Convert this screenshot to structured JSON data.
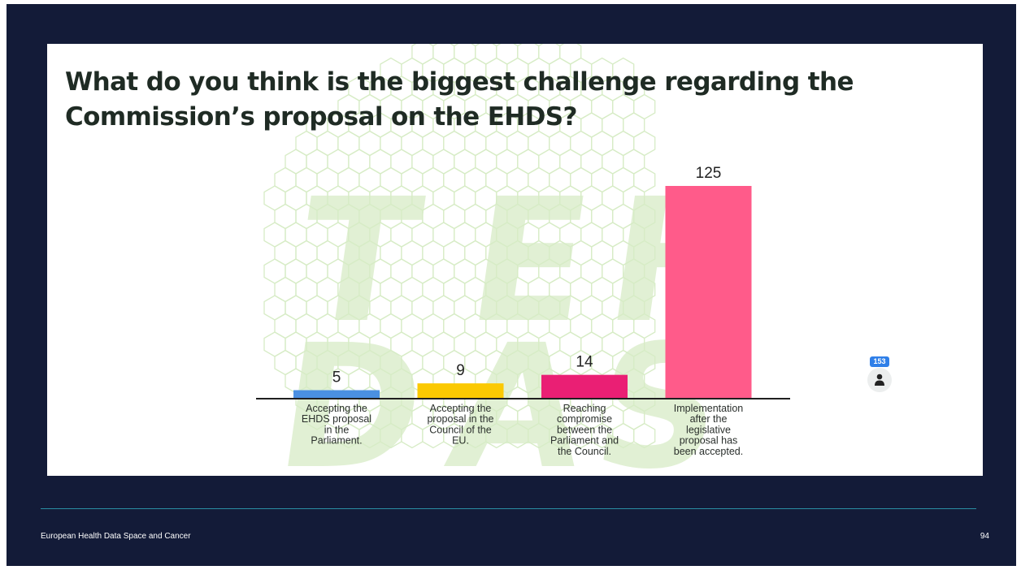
{
  "slide": {
    "question": "What do you think is the biggest challenge regarding the Commission’s proposal on the EHDS?",
    "footer_title": "European Health Data Space and Cancer",
    "page_number": "94",
    "participants_count": "153",
    "participants_icon": "person-icon"
  },
  "colors": {
    "slide_background": "#131b38",
    "panel_background": "#ffffff",
    "watermark": "#d7ecc6",
    "axis": "#1f1f1f",
    "text": "#1f2b24",
    "divider": "#2a8fa3",
    "badge": "#2f7fe8"
  },
  "chart_data": {
    "type": "bar",
    "title": "",
    "xlabel": "",
    "ylabel": "",
    "ylim": [
      0,
      125
    ],
    "grid": false,
    "categories": [
      "Accepting the EHDS proposal in the Parliament.",
      "Accepting the proposal in the Council of the EU.",
      "Reaching compromise between the Parliament and the Council.",
      "Implementation after the legislative proposal has been accepted."
    ],
    "category_lines": [
      [
        "Accepting the",
        "EHDS proposal",
        "in the",
        "Parliament."
      ],
      [
        "Accepting the",
        "proposal in the",
        "Council of the",
        "EU."
      ],
      [
        "Reaching",
        "compromise",
        "between the",
        "Parliament and",
        "the Council."
      ],
      [
        "Implementation",
        "after the",
        "legislative",
        "proposal has",
        "been accepted."
      ]
    ],
    "values": [
      5,
      9,
      14,
      125
    ],
    "data_labels": [
      "5",
      "9",
      "14",
      "125"
    ],
    "colors": [
      "#4a90e2",
      "#fbc902",
      "#ea1f74",
      "#ff5b8a"
    ]
  }
}
